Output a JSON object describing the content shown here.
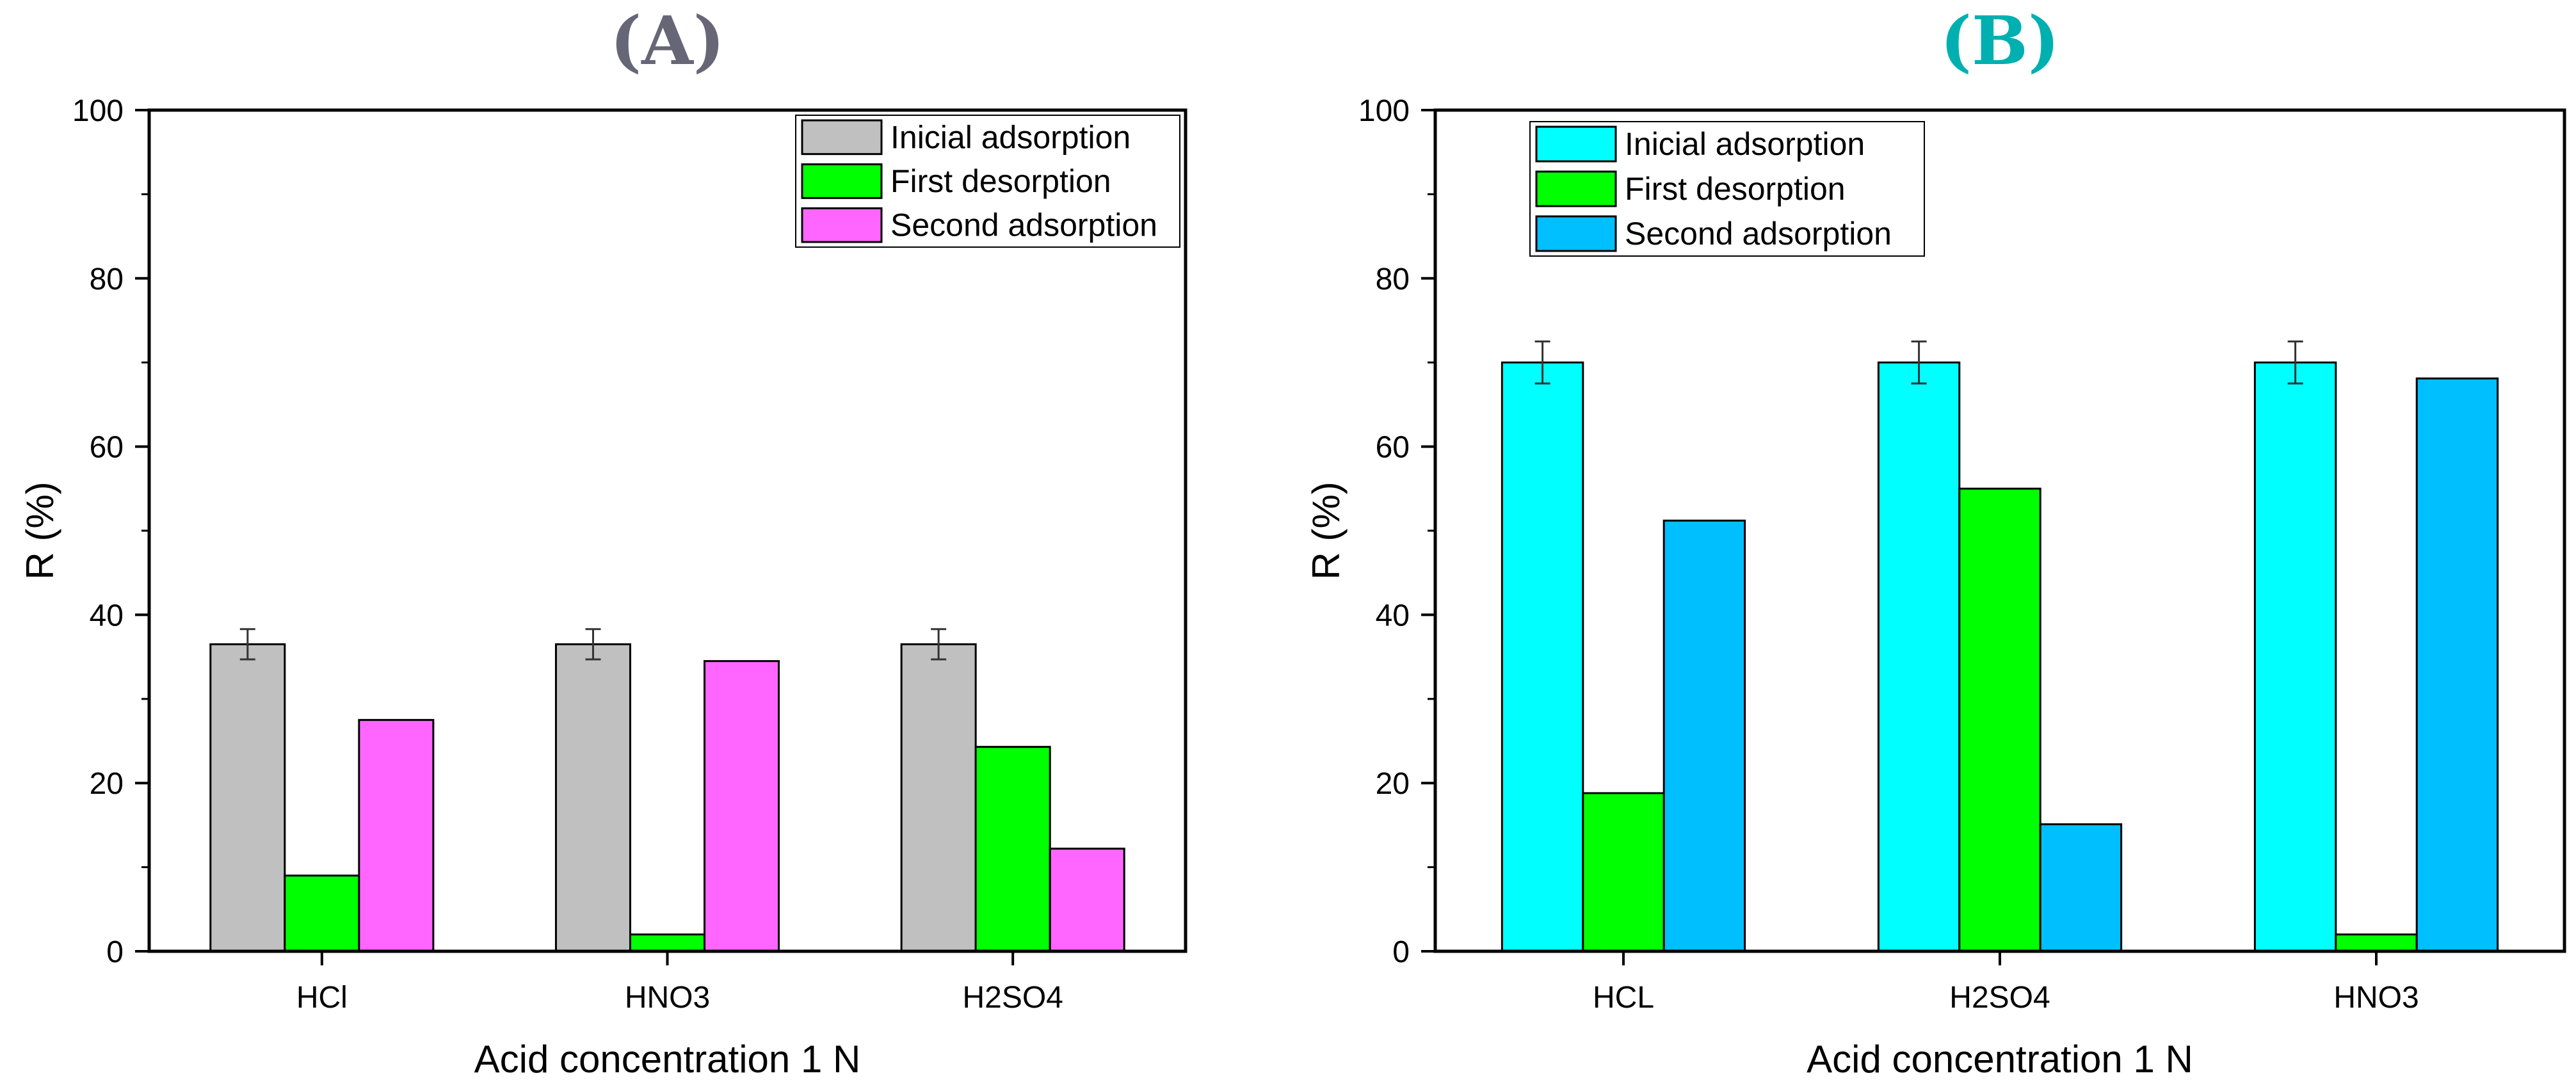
{
  "chart_data": [
    {
      "panel_label": "(A)",
      "label_color": "#666677",
      "type": "bar",
      "xlabel": "Acid concentration 1 N",
      "ylabel": "R (%)",
      "ylim": [
        0,
        100
      ],
      "yticks": [
        0,
        20,
        40,
        60,
        80,
        100
      ],
      "legend_position": "top-right",
      "categories": [
        "HCl",
        "HNO3",
        "H2SO4"
      ],
      "series": [
        {
          "name": "Inicial adsorption",
          "color": "#c0c0c0",
          "values": [
            36.5,
            36.5,
            36.5
          ],
          "errors": [
            1.8,
            1.8,
            1.8
          ]
        },
        {
          "name": "First desorption",
          "color": "#00ff00",
          "values": [
            9,
            2,
            24.3
          ]
        },
        {
          "name": "Second adsorption",
          "color": "#ff66ff",
          "values": [
            27.5,
            34.5,
            12.2
          ]
        }
      ]
    },
    {
      "panel_label": "(B)",
      "label_color": "#00b0b0",
      "type": "bar",
      "xlabel": "Acid concentration 1 N",
      "ylabel": "R (%)",
      "ylim": [
        0,
        100
      ],
      "yticks": [
        0,
        20,
        40,
        60,
        80,
        100
      ],
      "legend_position": "top-left",
      "categories": [
        "HCL",
        "H2SO4",
        "HNO3"
      ],
      "series": [
        {
          "name": "Inicial adsorption",
          "color": "#00ffff",
          "values": [
            70,
            70,
            70
          ],
          "errors": [
            2.5,
            2.5,
            2.5
          ]
        },
        {
          "name": "First desorption",
          "color": "#00ff00",
          "values": [
            18.8,
            55,
            2
          ]
        },
        {
          "name": "Second adsorption",
          "color": "#00bfff",
          "values": [
            51.2,
            15.1,
            68.1
          ]
        }
      ]
    }
  ]
}
